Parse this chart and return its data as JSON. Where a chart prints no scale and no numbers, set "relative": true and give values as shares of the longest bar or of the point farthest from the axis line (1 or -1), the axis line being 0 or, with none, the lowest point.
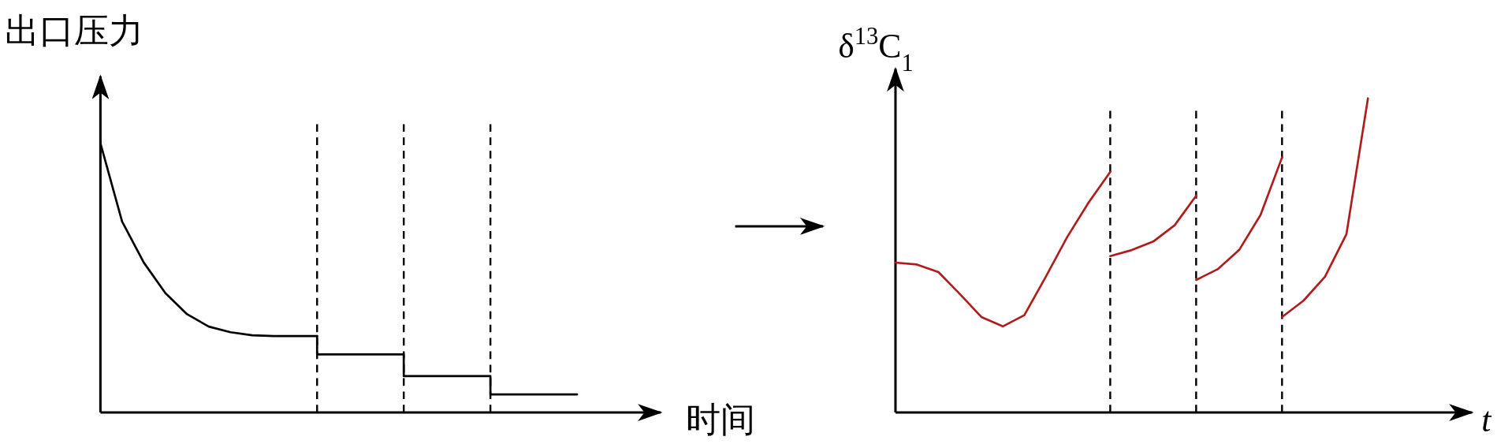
{
  "chart_data": [
    {
      "type": "line",
      "relative": true,
      "ylabel": "出口压力",
      "xlabel": "时间",
      "categories": [
        null,
        null,
        null,
        null,
        null,
        null,
        null,
        null,
        null,
        null,
        null,
        null,
        null,
        null,
        null,
        null,
        null,
        null,
        null,
        null,
        null,
        null,
        null
      ],
      "marker": "none",
      "line_style": "solid",
      "grid": "x",
      "series": [
        {
          "color": "#000000",
          "values": [
            1,
            0.709,
            0.557,
            0.443,
            0.365,
            0.319,
            0.298,
            0.287,
            0.284,
            0.284,
            0.284,
            null,
            null,
            null,
            null,
            null,
            null,
            null,
            null,
            null,
            null,
            null,
            null
          ]
        },
        {
          "type": "step",
          "color": "#000000",
          "values": [
            null,
            null,
            null,
            null,
            null,
            null,
            null,
            null,
            null,
            null,
            0.284,
            0.216,
            0.216,
            0.216,
            0.216,
            0.135,
            0.135,
            0.135,
            0.135,
            0.067,
            0.067,
            0.067,
            0.067
          ]
        }
      ]
    },
    {
      "type": "line",
      "relative": true,
      "ylabel": "δ$^{13}$C$_{1}$",
      "xlabel": "t",
      "categories": [
        null,
        null,
        null,
        null,
        null,
        null,
        null,
        null,
        null,
        null,
        null,
        null,
        null,
        null,
        null,
        null,
        null,
        null,
        null,
        null,
        null,
        null,
        null
      ],
      "marker": "none",
      "line_style": "solid",
      "grid": "x",
      "series": [
        {
          "color": "#b01c1c",
          "values": [
            0.477,
            0.471,
            0.447,
            0.377,
            0.304,
            0.274,
            0.31,
            0.432,
            0.559,
            0.669,
            0.766,
            null,
            null,
            null,
            null,
            null,
            null,
            null,
            null,
            null,
            null,
            null,
            null
          ]
        },
        {
          "color": "#b01c1c",
          "values": [
            null,
            null,
            null,
            null,
            null,
            null,
            null,
            null,
            null,
            null,
            0.498,
            0.517,
            0.544,
            0.596,
            0.69,
            null,
            null,
            null,
            null,
            null,
            null,
            null,
            null
          ]
        },
        {
          "color": "#b01c1c",
          "values": [
            null,
            null,
            null,
            null,
            null,
            null,
            null,
            null,
            null,
            null,
            null,
            null,
            null,
            null,
            0.422,
            0.456,
            0.517,
            0.629,
            0.812,
            null,
            null,
            null,
            null
          ]
        },
        {
          "color": "#b01c1c",
          "values": [
            null,
            null,
            null,
            null,
            null,
            null,
            null,
            null,
            null,
            null,
            null,
            null,
            null,
            null,
            null,
            null,
            null,
            null,
            0.304,
            0.356,
            0.432,
            0.568,
            1
          ]
        }
      ]
    }
  ]
}
